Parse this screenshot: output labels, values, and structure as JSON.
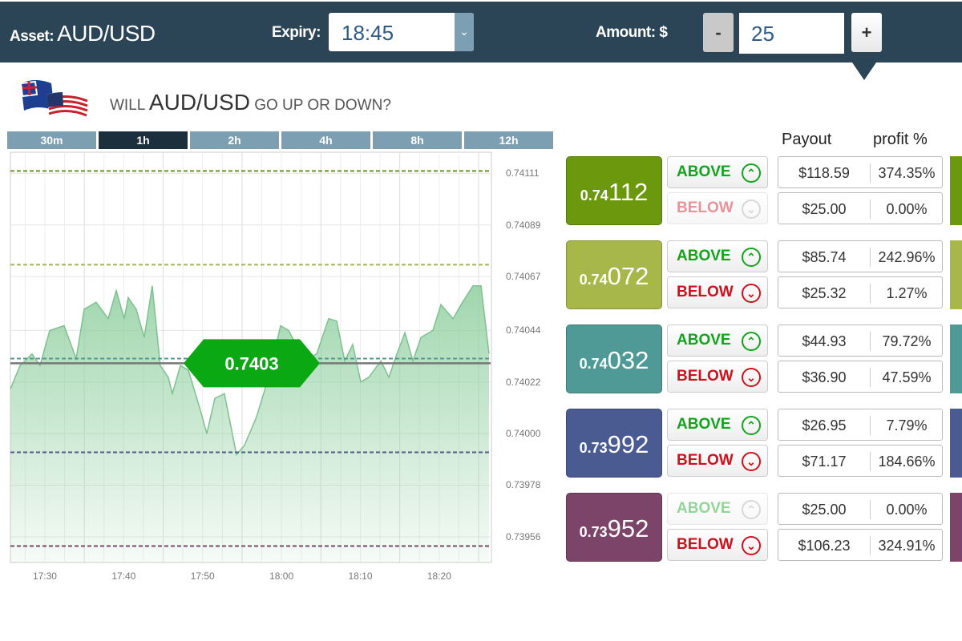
{
  "header": {
    "asset_label": "Asset:",
    "asset": "AUD/USD",
    "expiry_label": "Expiry:",
    "expiry": "18:45",
    "amount_label": "Amount: $",
    "minus": "-",
    "amount": "25",
    "plus": "+"
  },
  "question": {
    "pre": "WILL",
    "asset": "AUD/USD",
    "post": "GO UP OR DOWN?"
  },
  "timeframes": [
    {
      "label": "30m"
    },
    {
      "label": "1h",
      "active": true
    },
    {
      "label": "2h"
    },
    {
      "label": "4h"
    },
    {
      "label": "8h"
    },
    {
      "label": "12h"
    }
  ],
  "columns": {
    "payout": "Payout",
    "profit": "profit %"
  },
  "levels": [
    {
      "small": "0.74",
      "large": "112",
      "color": "#6c980e",
      "above": {
        "label": "ABOVE",
        "payout": "$118.59",
        "profit": "374.35%",
        "enabled": true
      },
      "below": {
        "label": "BELOW",
        "payout": "$25.00",
        "profit": "0.00%",
        "enabled": false
      }
    },
    {
      "small": "0.74",
      "large": "072",
      "color": "#a7b749",
      "above": {
        "label": "ABOVE",
        "payout": "$85.74",
        "profit": "242.96%",
        "enabled": true
      },
      "below": {
        "label": "BELOW",
        "payout": "$25.32",
        "profit": "1.27%",
        "enabled": true
      }
    },
    {
      "small": "0.74",
      "large": "032",
      "color": "#4f9a97",
      "above": {
        "label": "ABOVE",
        "payout": "$44.93",
        "profit": "79.72%",
        "enabled": true
      },
      "below": {
        "label": "BELOW",
        "payout": "$36.90",
        "profit": "47.59%",
        "enabled": true
      }
    },
    {
      "small": "0.73",
      "large": "992",
      "color": "#4a5b91",
      "above": {
        "label": "ABOVE",
        "payout": "$26.95",
        "profit": "7.79%",
        "enabled": true
      },
      "below": {
        "label": "BELOW",
        "payout": "$71.17",
        "profit": "184.66%",
        "enabled": true
      }
    },
    {
      "small": "0.73",
      "large": "952",
      "color": "#7b4468",
      "above": {
        "label": "ABOVE",
        "payout": "$25.00",
        "profit": "0.00%",
        "enabled": false
      },
      "below": {
        "label": "BELOW",
        "payout": "$106.23",
        "profit": "324.91%",
        "enabled": true
      }
    }
  ],
  "chart_data": {
    "type": "area",
    "current_price_label": "0.7403",
    "current_price": 0.7403,
    "ylim": [
      0.73945,
      0.7412
    ],
    "xlim": [
      "17:25:38",
      "18:26:19"
    ],
    "yticks": [
      "0.74111",
      "0.74089",
      "0.74067",
      "0.74044",
      "0.74022",
      "0.74000",
      "0.73978",
      "0.73956"
    ],
    "xticks": [
      "17:30",
      "17:40",
      "17:50",
      "18:00",
      "18:10",
      "18:20"
    ],
    "grid": true,
    "level_lines": [
      {
        "value": 0.74112,
        "color": "#6c980e"
      },
      {
        "value": 0.74072,
        "color": "#a7b749"
      },
      {
        "value": 0.74032,
        "color": "#4f9a97"
      },
      {
        "value": 0.73992,
        "color": "#4a5b91"
      },
      {
        "value": 0.73952,
        "color": "#7b4468"
      }
    ],
    "series": [
      {
        "x": [
          "17:25:38",
          "17:26:51",
          "17:28:22",
          "17:29:23",
          "17:30:37",
          "17:32:26",
          "17:33:58",
          "17:34:59",
          "17:36:30",
          "17:38:02",
          "17:39:03",
          "17:40:04",
          "17:40:34",
          "17:41:35",
          "17:42:36",
          "17:43:37",
          "17:44:38",
          "17:45:39",
          "17:46:10",
          "17:47:11",
          "17:48:12",
          "17:49:43",
          "17:50:32",
          "17:51:33",
          "17:52:46",
          "17:54:18",
          "17:55:19",
          "17:56:50",
          "17:58:22",
          "17:59:53",
          "18:00:54",
          "18:02:56",
          "18:04:28",
          "18:05:59",
          "18:07:00",
          "18:08:01",
          "18:09:02",
          "18:10:03",
          "18:11:04",
          "18:12:36",
          "18:13:37",
          "18:14:38",
          "18:15:39",
          "18:16:40",
          "18:17:41",
          "18:19:12",
          "18:20:13",
          "18:21:45",
          "18:22:46",
          "18:24:17",
          "18:25:18",
          "18:26:19"
        ],
        "y": [
          0.74019,
          0.74029,
          0.74034,
          0.74029,
          0.74044,
          0.74046,
          0.74032,
          0.74053,
          0.74056,
          0.74049,
          0.74061,
          0.74049,
          0.74058,
          0.74053,
          0.74041,
          0.74063,
          0.74029,
          0.74024,
          0.74017,
          0.74029,
          0.74027,
          0.7401,
          0.74,
          0.74015,
          0.74017,
          0.73991,
          0.73995,
          0.74007,
          0.74024,
          0.74046,
          0.74044,
          0.74031,
          0.74034,
          0.74049,
          0.74048,
          0.74031,
          0.74038,
          0.74022,
          0.74024,
          0.74031,
          0.74024,
          0.74034,
          0.74043,
          0.74031,
          0.74041,
          0.74044,
          0.74055,
          0.74049,
          0.74055,
          0.74063,
          0.74063,
          0.74034
        ]
      }
    ]
  }
}
